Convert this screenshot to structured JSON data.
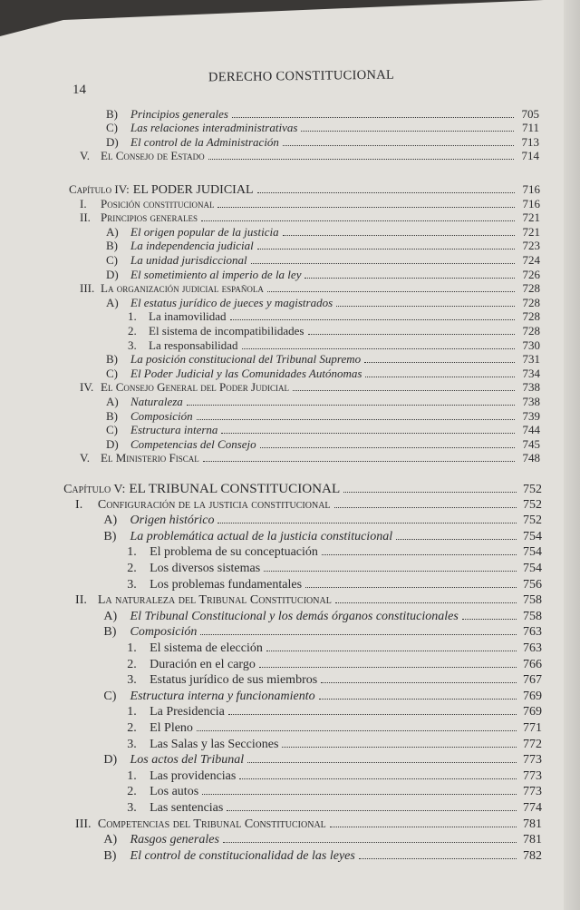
{
  "header": {
    "running_title": "DERECHO CONSTITUCIONAL",
    "page_number": "14"
  },
  "sections": [
    {
      "entries": [
        {
          "level": 2,
          "label": "B)",
          "title": "Principios generales",
          "page": "705",
          "style": "it"
        },
        {
          "level": 2,
          "label": "C)",
          "title": "Las relaciones interadministrativas",
          "page": "711",
          "style": "it"
        },
        {
          "level": 2,
          "label": "D)",
          "title": "El control de la Administración",
          "page": "713",
          "style": "it"
        },
        {
          "level": 1,
          "label": "V.",
          "title": "El Consejo de Estado",
          "page": "714",
          "style": "sc"
        }
      ]
    },
    {
      "entries": [
        {
          "level": 0,
          "label": "Capítulo IV:",
          "title": "EL PODER JUDICIAL",
          "page": "716",
          "style": "chap"
        },
        {
          "level": 1,
          "label": "I.",
          "title": "Posición constitucional",
          "page": "716",
          "style": "sc"
        },
        {
          "level": 1,
          "label": "II.",
          "title": "Principios generales",
          "page": "721",
          "style": "sc"
        },
        {
          "level": 2,
          "label": "A)",
          "title": "El origen popular de la justicia",
          "page": "721",
          "style": "it"
        },
        {
          "level": 2,
          "label": "B)",
          "title": "La independencia judicial",
          "page": "723",
          "style": "it"
        },
        {
          "level": 2,
          "label": "C)",
          "title": "La unidad jurisdiccional",
          "page": "724",
          "style": "it"
        },
        {
          "level": 2,
          "label": "D)",
          "title": "El sometimiento al imperio de la ley",
          "page": "726",
          "style": "it"
        },
        {
          "level": 1,
          "label": "III.",
          "title": "La organización judicial española",
          "page": "728",
          "style": "sc"
        },
        {
          "level": 2,
          "label": "A)",
          "title": "El estatus jurídico de jueces y magistrados",
          "page": "728",
          "style": "it"
        },
        {
          "level": 3,
          "label": "1.",
          "title": "La inamovilidad",
          "page": "728",
          "style": "n"
        },
        {
          "level": 3,
          "label": "2.",
          "title": "El sistema de incompatibilidades",
          "page": "728",
          "style": "n"
        },
        {
          "level": 3,
          "label": "3.",
          "title": "La responsabilidad",
          "page": "730",
          "style": "n"
        },
        {
          "level": 2,
          "label": "B)",
          "title": "La posición constitucional del Tribunal Supremo",
          "page": "731",
          "style": "it"
        },
        {
          "level": 2,
          "label": "C)",
          "title": "El Poder Judicial y las Comunidades Autónomas",
          "page": "734",
          "style": "it"
        },
        {
          "level": 1,
          "label": "IV.",
          "title": "El Consejo General del Poder Judicial",
          "page": "738",
          "style": "sc"
        },
        {
          "level": 2,
          "label": "A)",
          "title": "Naturaleza",
          "page": "738",
          "style": "it"
        },
        {
          "level": 2,
          "label": "B)",
          "title": "Composición",
          "page": "739",
          "style": "it"
        },
        {
          "level": 2,
          "label": "C)",
          "title": "Estructura interna",
          "page": "744",
          "style": "it"
        },
        {
          "level": 2,
          "label": "D)",
          "title": "Competencias del Consejo",
          "page": "745",
          "style": "it"
        },
        {
          "level": 1,
          "label": "V.",
          "title": "El Ministerio Fiscal",
          "page": "748",
          "style": "sc"
        }
      ]
    },
    {
      "entries": [
        {
          "level": 0,
          "label": "Capítulo V:",
          "title": "EL TRIBUNAL CONSTITUCIONAL",
          "page": "752",
          "style": "chap"
        },
        {
          "level": 1,
          "label": "I.",
          "title": "Configuración de la justicia constitucional",
          "page": "752",
          "style": "sc"
        },
        {
          "level": 2,
          "label": "A)",
          "title": "Origen histórico",
          "page": "752",
          "style": "it"
        },
        {
          "level": 2,
          "label": "B)",
          "title": "La problemática actual de la justicia constitucional",
          "page": "754",
          "style": "it"
        },
        {
          "level": 3,
          "label": "1.",
          "title": "El problema de su conceptuación",
          "page": "754",
          "style": "n"
        },
        {
          "level": 3,
          "label": "2.",
          "title": "Los diversos sistemas",
          "page": "754",
          "style": "n"
        },
        {
          "level": 3,
          "label": "3.",
          "title": "Los problemas fundamentales",
          "page": "756",
          "style": "n"
        },
        {
          "level": 1,
          "label": "II.",
          "title": "La naturaleza del Tribunal Constitucional",
          "page": "758",
          "style": "sc"
        },
        {
          "level": 2,
          "label": "A)",
          "title": "El Tribunal Constitucional y los demás órganos constitucionales",
          "page": "758",
          "style": "it"
        },
        {
          "level": 2,
          "label": "B)",
          "title": "Composición",
          "page": "763",
          "style": "it"
        },
        {
          "level": 3,
          "label": "1.",
          "title": "El sistema de elección",
          "page": "763",
          "style": "n"
        },
        {
          "level": 3,
          "label": "2.",
          "title": "Duración en el cargo",
          "page": "766",
          "style": "n"
        },
        {
          "level": 3,
          "label": "3.",
          "title": "Estatus jurídico de sus miembros",
          "page": "767",
          "style": "n"
        },
        {
          "level": 2,
          "label": "C)",
          "title": "Estructura interna y funcionamiento",
          "page": "769",
          "style": "it"
        },
        {
          "level": 3,
          "label": "1.",
          "title": "La Presidencia",
          "page": "769",
          "style": "n"
        },
        {
          "level": 3,
          "label": "2.",
          "title": "El Pleno",
          "page": "771",
          "style": "n"
        },
        {
          "level": 3,
          "label": "3.",
          "title": "Las Salas y las Secciones",
          "page": "772",
          "style": "n"
        },
        {
          "level": 2,
          "label": "D)",
          "title": "Los actos del Tribunal",
          "page": "773",
          "style": "it"
        },
        {
          "level": 3,
          "label": "1.",
          "title": "Las providencias",
          "page": "773",
          "style": "n"
        },
        {
          "level": 3,
          "label": "2.",
          "title": "Los autos",
          "page": "773",
          "style": "n"
        },
        {
          "level": 3,
          "label": "3.",
          "title": "Las sentencias",
          "page": "774",
          "style": "n"
        },
        {
          "level": 1,
          "label": "III.",
          "title": "Competencias del Tribunal Constitucional",
          "page": "781",
          "style": "sc"
        },
        {
          "level": 2,
          "label": "A)",
          "title": "Rasgos generales",
          "page": "781",
          "style": "it"
        },
        {
          "level": 2,
          "label": "B)",
          "title": "El control de constitucionalidad de las leyes",
          "page": "782",
          "style": "it"
        }
      ]
    }
  ]
}
